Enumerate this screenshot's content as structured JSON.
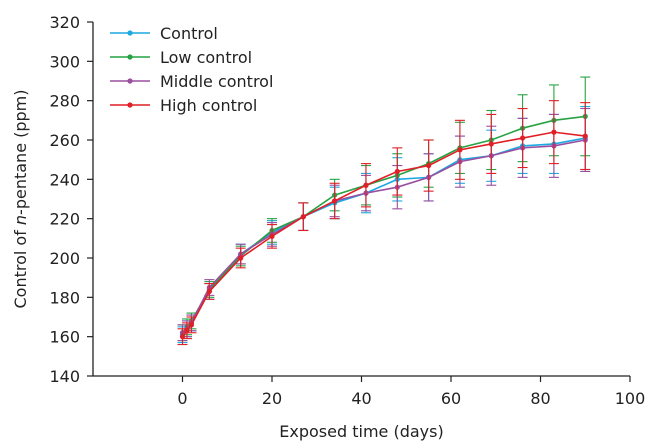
{
  "chart_data": {
    "type": "line",
    "title": "",
    "xlabel": "Exposed time (days)",
    "ylabel_parts": [
      "Control of ",
      "n",
      "-pentane (ppm)"
    ],
    "xlim": [
      -20,
      100
    ],
    "ylim": [
      140,
      320
    ],
    "xticks": [
      0,
      20,
      40,
      60,
      80,
      100
    ],
    "yticks": [
      140,
      160,
      180,
      200,
      220,
      240,
      260,
      280,
      300,
      320
    ],
    "grid": false,
    "legend_position": "top-left",
    "x": [
      0,
      1,
      2,
      6,
      13,
      20,
      27,
      34,
      41,
      48,
      55,
      62,
      69,
      76,
      83,
      90
    ],
    "series": [
      {
        "name": "Control",
        "color": "#1ba9e1",
        "values": [
          161,
          164,
          167,
          183,
          202,
          213,
          221,
          228,
          233,
          240,
          241,
          250,
          252,
          257,
          258,
          261
        ],
        "errors": [
          4,
          4,
          4,
          4,
          5,
          6,
          7,
          8,
          10,
          11,
          12,
          12,
          13,
          14,
          15,
          16
        ]
      },
      {
        "name": "Low control",
        "color": "#27a243",
        "values": [
          162,
          165,
          168,
          184,
          201,
          214,
          221,
          232,
          237,
          242,
          248,
          256,
          260,
          266,
          270,
          272
        ],
        "errors": [
          4,
          4,
          4,
          4,
          5,
          6,
          7,
          8,
          10,
          11,
          12,
          13,
          15,
          17,
          18,
          20
        ]
      },
      {
        "name": "Middle control",
        "color": "#9a4ea0",
        "values": [
          162,
          164,
          167,
          185,
          202,
          212,
          221,
          229,
          233,
          236,
          241,
          249,
          252,
          256,
          257,
          260
        ],
        "errors": [
          4,
          4,
          4,
          4,
          5,
          6,
          7,
          8,
          9,
          11,
          12,
          13,
          15,
          15,
          16,
          16
        ]
      },
      {
        "name": "High control",
        "color": "#e11f26",
        "values": [
          160,
          163,
          166,
          183,
          200,
          211,
          221,
          229,
          237,
          244,
          247,
          255,
          258,
          261,
          264,
          262
        ],
        "errors": [
          4,
          4,
          4,
          4,
          5,
          6,
          7,
          9,
          11,
          12,
          13,
          15,
          15,
          15,
          16,
          17
        ]
      }
    ]
  }
}
